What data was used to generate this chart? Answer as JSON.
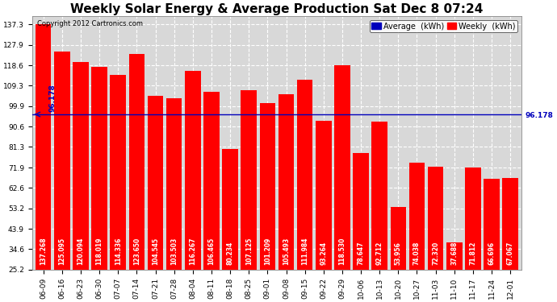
{
  "title": "Weekly Solar Energy & Average Production Sat Dec 8 07:24",
  "copyright": "Copyright 2012 Cartronics.com",
  "categories": [
    "06-09",
    "06-16",
    "06-23",
    "06-30",
    "07-07",
    "07-14",
    "07-21",
    "07-28",
    "08-04",
    "08-11",
    "08-18",
    "08-25",
    "09-01",
    "09-08",
    "09-15",
    "09-22",
    "09-29",
    "10-06",
    "10-13",
    "10-20",
    "10-27",
    "11-03",
    "11-10",
    "11-17",
    "11-24",
    "12-01"
  ],
  "values": [
    137.268,
    125.095,
    120.094,
    118.019,
    114.336,
    123.65,
    104.545,
    103.503,
    116.267,
    106.465,
    80.234,
    107.125,
    101.209,
    105.493,
    111.984,
    93.264,
    118.53,
    78.647,
    92.712,
    53.956,
    74.038,
    72.32,
    37.688,
    71.812,
    66.696,
    67.067
  ],
  "average": 96.178,
  "bar_color": "#FF0000",
  "average_line_color": "#0000BB",
  "average_label_color": "#0000BB",
  "bar_value_color": "#FFFFFF",
  "background_color": "#FFFFFF",
  "plot_bg_color": "#D8D8D8",
  "grid_color": "#FFFFFF",
  "yticks": [
    25.2,
    34.6,
    43.9,
    53.2,
    62.6,
    71.9,
    81.3,
    90.6,
    99.9,
    109.3,
    118.6,
    127.9,
    137.3
  ],
  "ylim_min": 25.2,
  "ylim_max": 141.0,
  "legend_avg_color": "#0000BB",
  "legend_weekly_color": "#FF0000",
  "avg_label": "96.178",
  "title_fontsize": 11,
  "tick_fontsize": 6.5,
  "bar_value_fontsize": 5.5,
  "copyright_fontsize": 6,
  "legend_fontsize": 7
}
